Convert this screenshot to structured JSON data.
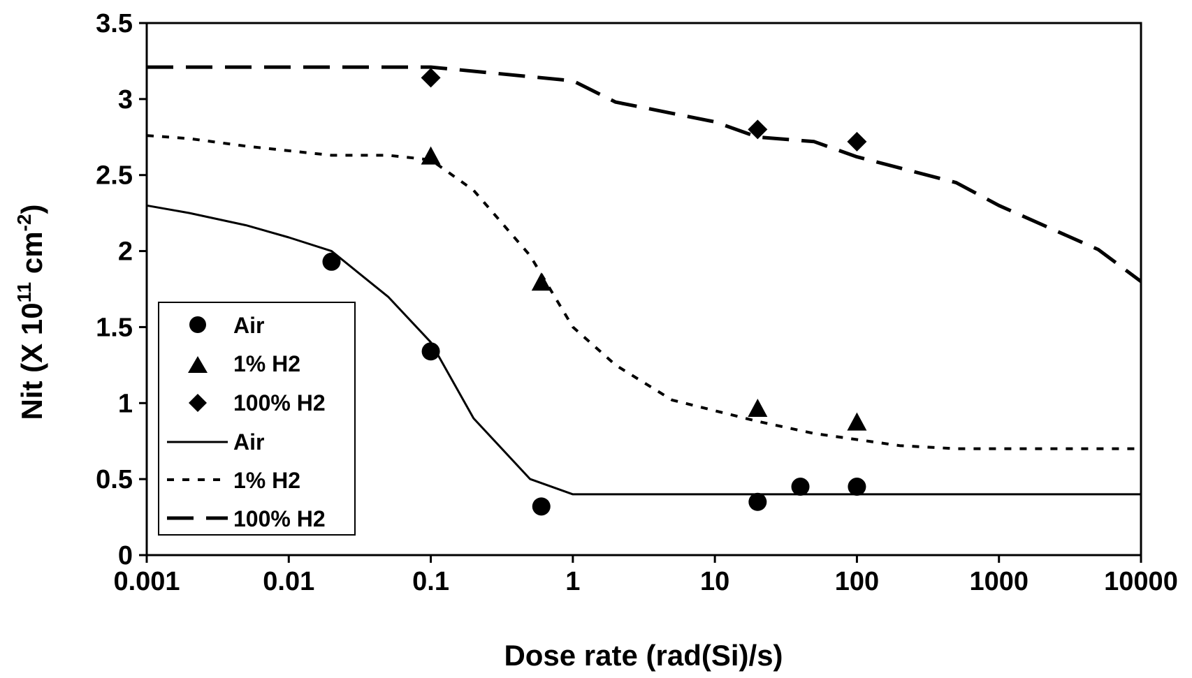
{
  "chart_data": {
    "type": "scatter",
    "title": "",
    "xlabel": "Dose rate (rad(Si)/s)",
    "ylabel": {
      "prefix": "Nit (X 10",
      "sup1": "11",
      "mid": " cm",
      "sup2": "-2",
      "suffix": ")"
    },
    "xscale": "log",
    "xlim": [
      0.001,
      10000
    ],
    "ylim": [
      0,
      3.5
    ],
    "x_ticks": [
      {
        "value": 0.001,
        "label": "0.001"
      },
      {
        "value": 0.01,
        "label": "0.01"
      },
      {
        "value": 0.1,
        "label": "0.1"
      },
      {
        "value": 1,
        "label": "1"
      },
      {
        "value": 10,
        "label": "10"
      },
      {
        "value": 100,
        "label": "100"
      },
      {
        "value": 1000,
        "label": "1000"
      },
      {
        "value": 10000,
        "label": "10000"
      }
    ],
    "y_ticks": [
      {
        "value": 0,
        "label": "0"
      },
      {
        "value": 0.5,
        "label": "0.5"
      },
      {
        "value": 1,
        "label": "1"
      },
      {
        "value": 1.5,
        "label": "1.5"
      },
      {
        "value": 2,
        "label": "2"
      },
      {
        "value": 2.5,
        "label": "2.5"
      },
      {
        "value": 3,
        "label": "3"
      },
      {
        "value": 3.5,
        "label": "3.5"
      }
    ],
    "grid": false,
    "legend_position": "lower-left",
    "series": [
      {
        "name": "Air",
        "kind": "markers",
        "marker": "circle",
        "x": [
          0.02,
          0.1,
          0.6,
          20,
          40,
          100
        ],
        "y": [
          1.93,
          1.34,
          0.32,
          0.35,
          0.45,
          0.45
        ]
      },
      {
        "name": "1% H2",
        "kind": "markers",
        "marker": "triangle",
        "x": [
          0.1,
          0.6,
          20,
          100
        ],
        "y": [
          2.62,
          1.79,
          0.96,
          0.87
        ]
      },
      {
        "name": "100% H2",
        "kind": "markers",
        "marker": "diamond",
        "x": [
          0.1,
          20,
          100
        ],
        "y": [
          3.14,
          2.8,
          2.72
        ]
      },
      {
        "name": "Air",
        "kind": "line",
        "style": "solid",
        "x": [
          0.001,
          0.002,
          0.005,
          0.01,
          0.02,
          0.05,
          0.1,
          0.2,
          0.5,
          1,
          10,
          100,
          1000,
          10000
        ],
        "y": [
          2.3,
          2.25,
          2.17,
          2.09,
          2.0,
          1.7,
          1.4,
          0.9,
          0.5,
          0.4,
          0.4,
          0.4,
          0.4,
          0.4
        ]
      },
      {
        "name": "1% H2",
        "kind": "line",
        "style": "dotted",
        "x": [
          0.001,
          0.002,
          0.005,
          0.01,
          0.02,
          0.05,
          0.1,
          0.2,
          0.5,
          1,
          2,
          5,
          10,
          20,
          50,
          100,
          200,
          500,
          1000,
          10000
        ],
        "y": [
          2.76,
          2.74,
          2.69,
          2.66,
          2.63,
          2.63,
          2.6,
          2.4,
          1.97,
          1.5,
          1.25,
          1.02,
          0.95,
          0.88,
          0.8,
          0.76,
          0.72,
          0.7,
          0.7,
          0.7
        ]
      },
      {
        "name": "100% H2",
        "kind": "line",
        "style": "long-dash",
        "x": [
          0.001,
          0.01,
          0.1,
          1,
          2,
          10,
          20,
          50,
          100,
          500,
          1000,
          5000,
          10000
        ],
        "y": [
          3.21,
          3.21,
          3.21,
          3.12,
          2.98,
          2.85,
          2.75,
          2.72,
          2.62,
          2.45,
          2.3,
          2.01,
          1.8
        ]
      }
    ]
  }
}
